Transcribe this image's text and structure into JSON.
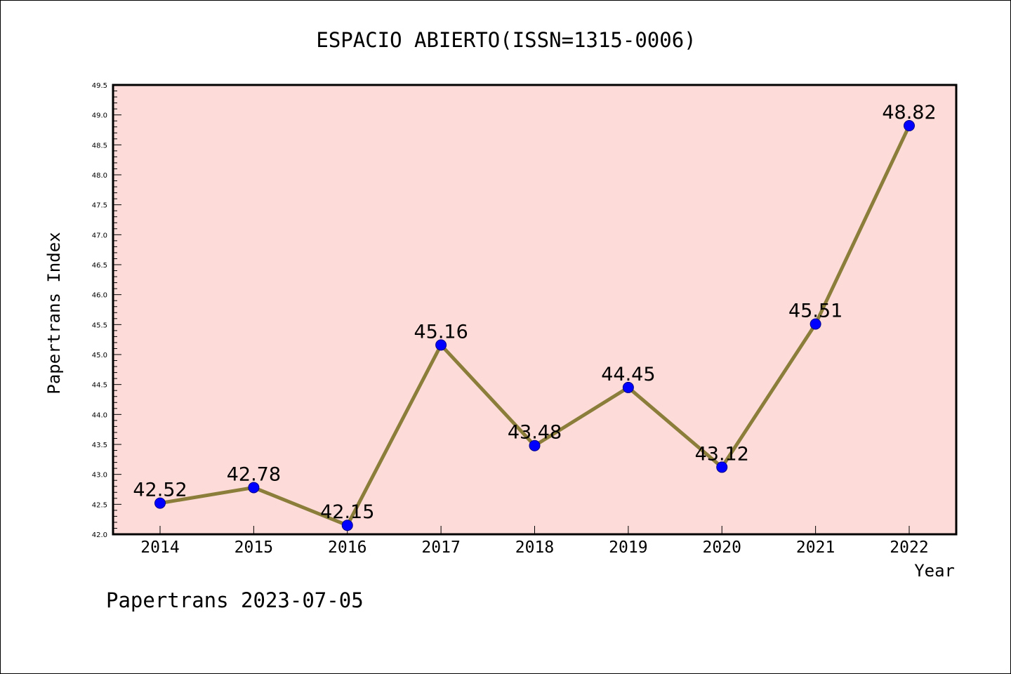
{
  "chart_data": {
    "type": "line",
    "title": "ESPACIO ABIERTO(ISSN=1315-0006)",
    "xlabel": "Year",
    "ylabel": "Papertrans Index",
    "footer": "Papertrans 2023-07-05",
    "categories": [
      "2014",
      "2015",
      "2016",
      "2017",
      "2018",
      "2019",
      "2020",
      "2021",
      "2022"
    ],
    "series": [
      {
        "values": [
          42.52,
          42.78,
          42.15,
          45.16,
          43.48,
          44.45,
          43.12,
          45.51,
          48.82
        ],
        "labels": [
          "42.52",
          "42.78",
          "42.15",
          "45.16",
          "43.48",
          "44.45",
          "43.12",
          "45.51",
          "48.82"
        ]
      }
    ],
    "ylim": [
      42.0,
      49.5
    ],
    "yticks": [
      "42.0",
      "42.5",
      "43.0",
      "43.5",
      "44.0",
      "44.5",
      "45.0",
      "45.5",
      "46.0",
      "46.5",
      "47.0",
      "47.5",
      "48.0",
      "48.5",
      "49.0",
      "49.5"
    ],
    "grid": false,
    "legend": "none",
    "colors": {
      "plot_background": "#fddbd8",
      "line": "#8b7d3a",
      "marker": "#0000ff",
      "marker_edge": "#00008b",
      "axis": "#000000"
    }
  }
}
